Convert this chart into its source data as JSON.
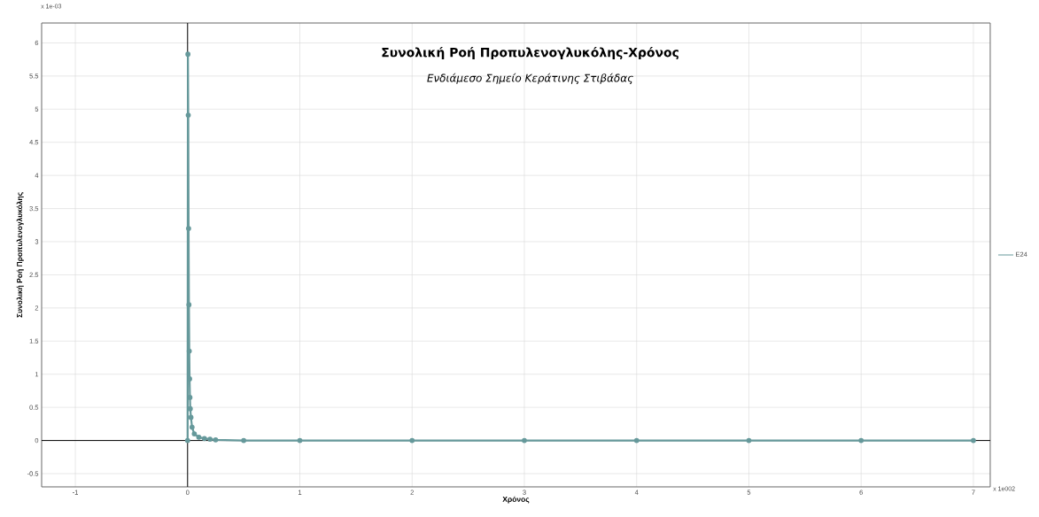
{
  "chart_data": {
    "type": "line",
    "title": "Συνολική Ροή Προπυλενογλυκόλης-Χρόνος",
    "subtitle": "*Ενδιάμεσο Σημείο Κεράτινης Στιβάδας*",
    "xlabel": "Χρόνος",
    "ylabel": "Συνολική Ροή Προπυλενογλυκόλης",
    "annotations": [
      "x 1e-03",
      "x 1e002"
    ],
    "x": [
      0,
      0.003,
      0.006,
      0.009,
      0.012,
      0.015,
      0.018,
      0.021,
      0.024,
      0.03,
      0.04,
      0.06,
      0.1,
      0.15,
      0.2,
      0.25,
      0.5,
      1,
      2,
      3,
      4,
      5,
      6,
      7
    ],
    "series": [
      {
        "name": "E24",
        "color": "#66999b",
        "values": [
          0,
          5.83,
          4.91,
          3.2,
          2.05,
          1.35,
          0.93,
          0.65,
          0.48,
          0.35,
          0.2,
          0.1,
          0.05,
          0.03,
          0.02,
          0.01,
          0,
          0,
          0,
          0,
          0,
          0,
          0,
          0
        ]
      }
    ],
    "xlim": [
      -1.3,
      7.15
    ],
    "ylim": [
      -0.7,
      6.3
    ],
    "xticks": [
      -1,
      0,
      1,
      2,
      3,
      4,
      5,
      6,
      7
    ],
    "yticks": [
      -0.5,
      0,
      0.5,
      1,
      1.5,
      2,
      2.5,
      3,
      3.5,
      4,
      4.5,
      5,
      5.5,
      6
    ],
    "grid": true,
    "legend": "right",
    "marker": "circle",
    "line_style": "solid"
  }
}
